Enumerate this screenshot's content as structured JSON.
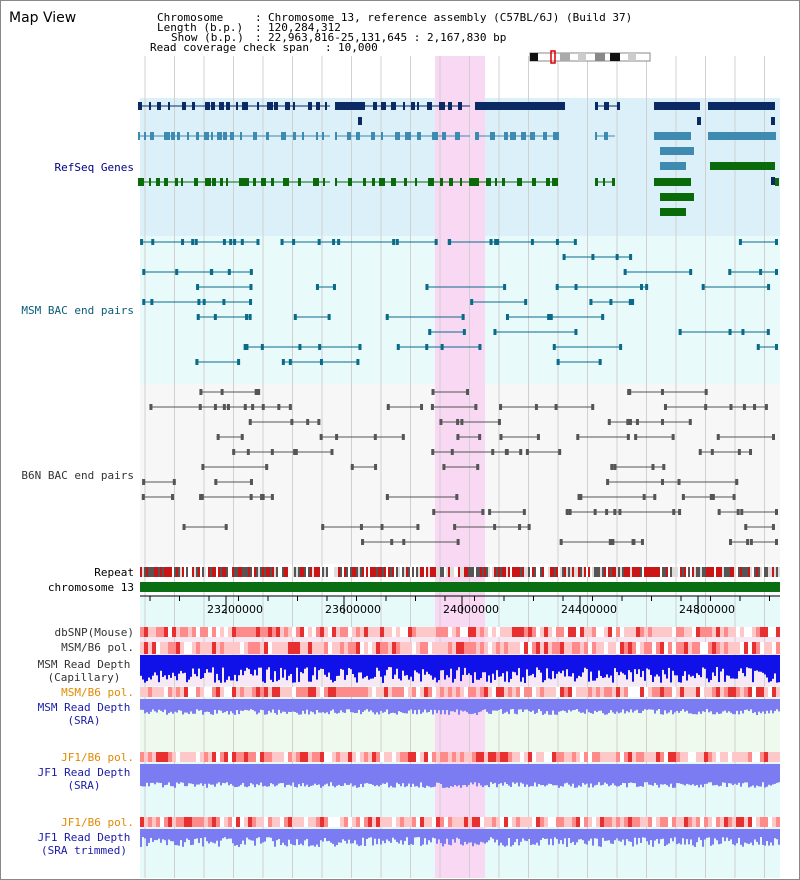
{
  "page": {
    "title": "Map View"
  },
  "header": {
    "chromosome_label": "Chromosome",
    "chromosome_value": "Chromosome 13, reference assembly (C57BL/6J) (Build 37)",
    "length_label": "Length (b.p.)",
    "length_value": "120,284,312",
    "show_label": "Show (b.p.)",
    "show_value": "22,963,816-25,131,645 : 2,167,830 bp",
    "coverage_label": "Read coverage check span",
    "coverage_value": "10,000"
  },
  "tracks": {
    "refseq": "RefSeq Genes",
    "msm_bac": "MSM BAC end pairs",
    "b6n_bac": "B6N BAC end pairs",
    "repeat": "Repeat",
    "chromosome": "chromosome 13",
    "dbsnp": "dbSNP(Mouse)",
    "msm_pol_1": "MSM/B6 pol.",
    "msm_depth_cap_1": "MSM Read Depth",
    "msm_depth_cap_2": "(Capillary)",
    "msm_pol_2": "MSM/B6 pol.",
    "msm_depth_sra_1": "MSM Read Depth",
    "msm_depth_sra_2": "(SRA)",
    "jf1_pol_1": "JF1/B6 pol.",
    "jf1_depth_1": "JF1 Read Depth",
    "jf1_depth_2": "(SRA)",
    "jf1_pol_2": "JF1/B6 pol.",
    "jf1_trim_1": "JF1 Read Depth",
    "jf1_trim_2": "(SRA trimmed)"
  },
  "axis": {
    "ticks": [
      "23200000",
      "23600000",
      "24000000",
      "24400000",
      "24800000"
    ]
  },
  "colors": {
    "refseq_bg": "#dcf0fa",
    "bac_bg": "#e8fafa",
    "highlight": "#f8d8f2",
    "refseq_navy": "#0b2a63",
    "refseq_teal": "#3e8ab0",
    "refseq_green": "#0a6a0a",
    "bac_teal": "#0a6a8a",
    "b6n_gray": "#555555",
    "chromosome_green": "#0a6e12",
    "depth_blue": "#1010e8",
    "sra_blue": "#7b7bf2"
  },
  "icons": {
    "ideogram": "chromosome-ideogram-icon"
  }
}
